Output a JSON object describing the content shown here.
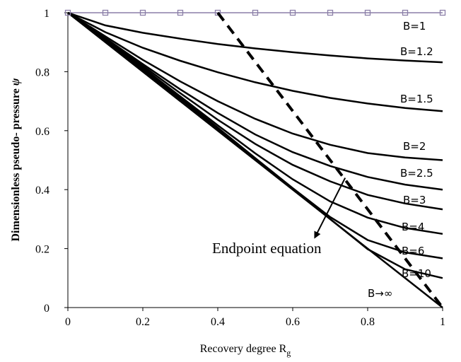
{
  "chart_data": {
    "type": "line",
    "xlabel": "Recovery degree R",
    "xlabel_subscript": "g",
    "ylabel": "Dimensionless pseudo- pressure ",
    "ylabel_symbol": "ψ",
    "xlim": [
      0,
      1
    ],
    "ylim": [
      0,
      1
    ],
    "x_ticks": [
      "0",
      "0.2",
      "0.4",
      "0.6",
      "0.8",
      "1"
    ],
    "y_ticks": [
      "0",
      "0.2",
      "0.4",
      "0.6",
      "0.8",
      "1"
    ],
    "grid": false,
    "series": [
      {
        "name": "B=1",
        "x": [
          0,
          1
        ],
        "y": [
          1,
          1
        ],
        "marker": "square",
        "marker_x": [
          0,
          0.1,
          0.2,
          0.3,
          0.4,
          0.5,
          0.6,
          0.7,
          0.8,
          0.9,
          1.0
        ],
        "color": "#8b7fa8"
      },
      {
        "name": "B=1.2",
        "x": [
          0,
          0.1,
          0.2,
          0.3,
          0.4,
          0.5,
          0.6,
          0.7,
          0.8,
          0.9,
          1.0
        ],
        "y": [
          1,
          0.957,
          0.932,
          0.912,
          0.894,
          0.879,
          0.866,
          0.855,
          0.845,
          0.838,
          0.832
        ]
      },
      {
        "name": "B=1.5",
        "x": [
          0,
          0.1,
          0.2,
          0.3,
          0.4,
          0.5,
          0.6,
          0.7,
          0.8,
          0.9,
          1.0
        ],
        "y": [
          1,
          0.934,
          0.881,
          0.837,
          0.798,
          0.764,
          0.735,
          0.711,
          0.692,
          0.677,
          0.666
        ]
      },
      {
        "name": "B=2",
        "x": [
          0,
          0.1,
          0.2,
          0.3,
          0.4,
          0.5,
          0.6,
          0.7,
          0.8,
          0.9,
          1.0
        ],
        "y": [
          1,
          0.92,
          0.84,
          0.767,
          0.7,
          0.64,
          0.59,
          0.552,
          0.524,
          0.509,
          0.5
        ]
      },
      {
        "name": "B=2.5",
        "x": [
          0,
          0.1,
          0.2,
          0.3,
          0.4,
          0.5,
          0.6,
          0.7,
          0.8,
          0.9,
          1.0
        ],
        "y": [
          1,
          0.914,
          0.826,
          0.74,
          0.66,
          0.587,
          0.527,
          0.48,
          0.443,
          0.417,
          0.4
        ]
      },
      {
        "name": "B=3",
        "x": [
          0,
          0.1,
          0.2,
          0.3,
          0.4,
          0.5,
          0.6,
          0.7,
          0.8,
          0.9,
          1.0
        ],
        "y": [
          1,
          0.912,
          0.82,
          0.727,
          0.637,
          0.555,
          0.484,
          0.428,
          0.382,
          0.353,
          0.333
        ]
      },
      {
        "name": "B=4",
        "x": [
          0,
          0.1,
          0.2,
          0.3,
          0.4,
          0.5,
          0.6,
          0.7,
          0.8,
          0.9,
          1.0
        ],
        "y": [
          1,
          0.909,
          0.814,
          0.716,
          0.618,
          0.523,
          0.435,
          0.36,
          0.305,
          0.27,
          0.25
        ]
      },
      {
        "name": "B=6",
        "x": [
          0,
          0.1,
          0.2,
          0.3,
          0.4,
          0.5,
          0.6,
          0.7,
          0.8,
          0.9,
          1.0
        ],
        "y": [
          1,
          0.906,
          0.81,
          0.711,
          0.61,
          0.507,
          0.405,
          0.307,
          0.229,
          0.187,
          0.167
        ]
      },
      {
        "name": "B=10",
        "x": [
          0,
          0.1,
          0.2,
          0.3,
          0.4,
          0.5,
          0.6,
          0.7,
          0.8,
          0.9,
          1.0
        ],
        "y": [
          1,
          0.903,
          0.806,
          0.707,
          0.607,
          0.505,
          0.403,
          0.3,
          0.198,
          0.13,
          0.1
        ]
      },
      {
        "name": "B→∞",
        "x": [
          0,
          1
        ],
        "y": [
          1,
          0
        ]
      }
    ],
    "endpoint_line": {
      "name": "Endpoint equation",
      "style": "dashed",
      "x": [
        0.4,
        1.0
      ],
      "y": [
        1.0,
        0.0
      ]
    },
    "annotation": {
      "text": "Endpoint equation",
      "arrow_from": [
        0.74,
        0.44
      ],
      "arrow_to": [
        0.66,
        0.24
      ]
    }
  }
}
